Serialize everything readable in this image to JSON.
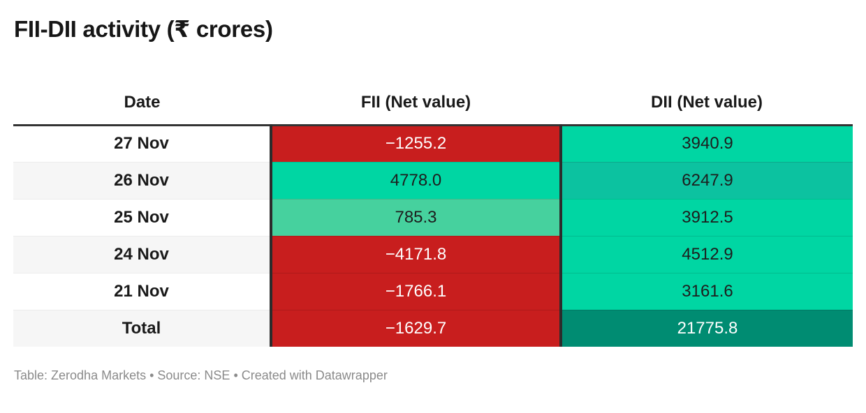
{
  "title": "FII-DII activity (₹ crores)",
  "chart_data": {
    "type": "table",
    "title": "FII-DII activity (₹ crores)",
    "columns": [
      "Date",
      "FII (Net value)",
      "DII (Net value)"
    ],
    "rows": [
      {
        "date": "27 Nov",
        "fii": -1255.2,
        "dii": 3940.9
      },
      {
        "date": "26 Nov",
        "fii": 4778.0,
        "dii": 6247.9
      },
      {
        "date": "25 Nov",
        "fii": 785.3,
        "dii": 3912.5
      },
      {
        "date": "24 Nov",
        "fii": -4171.8,
        "dii": 4512.9
      },
      {
        "date": "21 Nov",
        "fii": -1766.1,
        "dii": 3161.6
      },
      {
        "date": "Total",
        "fii": -1629.7,
        "dii": 21775.8
      }
    ]
  },
  "header": {
    "date": "Date",
    "fii": "FII (Net value)",
    "dii": "DII (Net value)"
  },
  "rows": [
    {
      "date": "27 Nov",
      "fii": "−1255.2",
      "dii": "3940.9",
      "date_bg": "#ffffff",
      "fii_bg": "#c81e1e",
      "fii_fg": "#ffffff",
      "dii_bg": "#00d6a3",
      "dii_fg": "#1d1d1d"
    },
    {
      "date": "26 Nov",
      "fii": "4778.0",
      "dii": "6247.9",
      "date_bg": "#f6f6f6",
      "fii_bg": "#00d6a3",
      "fii_fg": "#1d1d1d",
      "dii_bg": "#0cc2a0",
      "dii_fg": "#1d1d1d"
    },
    {
      "date": "25 Nov",
      "fii": "785.3",
      "dii": "3912.5",
      "date_bg": "#ffffff",
      "fii_bg": "#46d19e",
      "fii_fg": "#1d1d1d",
      "dii_bg": "#00d6a3",
      "dii_fg": "#1d1d1d"
    },
    {
      "date": "24 Nov",
      "fii": "−4171.8",
      "dii": "4512.9",
      "date_bg": "#f6f6f6",
      "fii_bg": "#c81e1e",
      "fii_fg": "#ffffff",
      "dii_bg": "#00d6a3",
      "dii_fg": "#1d1d1d"
    },
    {
      "date": "21 Nov",
      "fii": "−1766.1",
      "dii": "3161.6",
      "date_bg": "#ffffff",
      "fii_bg": "#c81e1e",
      "fii_fg": "#ffffff",
      "dii_bg": "#00d6a3",
      "dii_fg": "#1d1d1d"
    },
    {
      "date": "Total",
      "fii": "−1629.7",
      "dii": "21775.8",
      "date_bg": "#f6f6f6",
      "fii_bg": "#c81e1e",
      "fii_fg": "#ffffff",
      "dii_bg": "#008c72",
      "dii_fg": "#ffffff"
    }
  ],
  "footer": "Table: Zerodha Markets • Source: NSE • Created with Datawrapper",
  "colors": {
    "negative_red": "#c81e1e",
    "positive_green": "#00d6a3",
    "light_green": "#46d19e",
    "mid_teal": "#0cc2a0",
    "dark_teal": "#008c72",
    "header_border": "#333333",
    "column_divider": "#2c2c2c",
    "alt_row_bg": "#f6f6f6",
    "footer_text": "#8a8a8a"
  }
}
